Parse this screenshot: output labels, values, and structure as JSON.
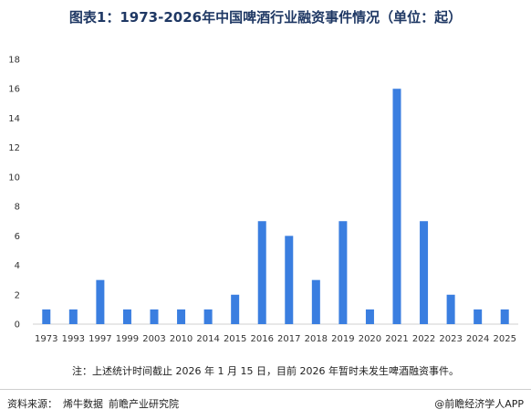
{
  "chart_data": {
    "type": "bar",
    "title": "图表1：1973-2026年中国啤酒行业融资事件情况（单位：起）",
    "categories": [
      "1973",
      "1993",
      "1997",
      "1999",
      "2003",
      "2010",
      "2014",
      "2015",
      "2016",
      "2017",
      "2018",
      "2019",
      "2020",
      "2021",
      "2022",
      "2023",
      "2024",
      "2025"
    ],
    "series": [
      {
        "values": [
          1,
          1,
          3,
          1,
          1,
          1,
          1,
          2,
          7,
          6,
          3,
          7,
          1,
          16,
          7,
          2,
          1,
          1
        ]
      }
    ],
    "xlabel": "",
    "ylabel": "",
    "ylim": [
      0,
      18
    ],
    "yticks": [
      0,
      2,
      4,
      6,
      8,
      10,
      12,
      14,
      16,
      18
    ],
    "grid": false,
    "legend": "none",
    "bar_color": "#3a7ee0"
  },
  "note": "注：上述统计时间截止 2026 年 1 月 15 日，目前 2026 年暂时未发生啤酒融资事件。",
  "source": {
    "label": "资料来源：",
    "items": [
      "烯牛数据",
      "前瞻产业研究院"
    ]
  },
  "brand": "@前瞻经济学人APP"
}
